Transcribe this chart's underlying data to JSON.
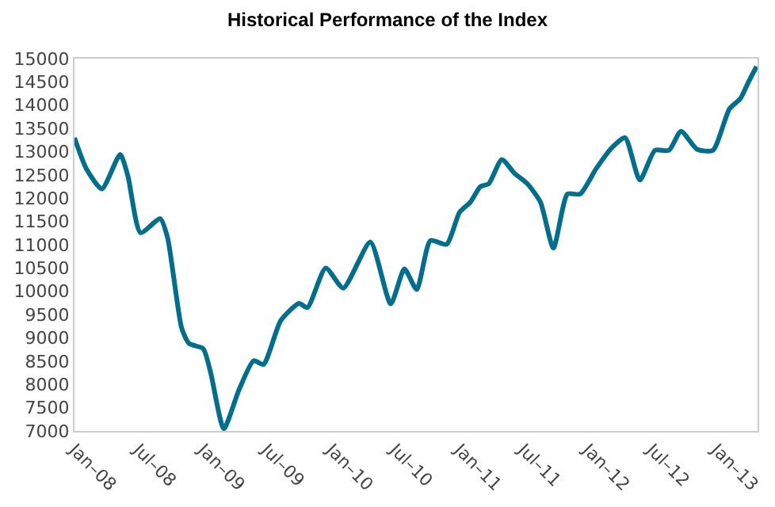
{
  "chart_data": {
    "type": "line",
    "title": "Historical Performance of the Index",
    "x": [
      "2008-01-01",
      "2008-02-04",
      "2008-03-19",
      "2008-05-10",
      "2008-06-01",
      "2008-07-07",
      "2008-09-01",
      "2008-09-22",
      "2008-11-01",
      "2008-11-22",
      "2009-01-01",
      "2009-01-22",
      "2009-03-01",
      "2009-04-13",
      "2009-05-25",
      "2009-06-22",
      "2009-08-10",
      "2009-10-01",
      "2009-10-25",
      "2009-12-16",
      "2010-02-04",
      "2010-04-22",
      "2010-06-19",
      "2010-07-28",
      "2010-09-01",
      "2010-10-10",
      "2010-11-25",
      "2011-01-01",
      "2011-02-01",
      "2011-03-01",
      "2011-03-25",
      "2011-05-01",
      "2011-06-07",
      "2011-07-13",
      "2011-08-19",
      "2011-09-25",
      "2011-11-04",
      "2011-12-10",
      "2012-01-25",
      "2012-03-10",
      "2012-04-16",
      "2012-05-28",
      "2012-07-10",
      "2012-08-19",
      "2012-09-22",
      "2012-11-07",
      "2012-12-22",
      "2013-02-07",
      "2013-03-10",
      "2013-04-01",
      "2013-04-25"
    ],
    "series": [
      {
        "color": "#006f8e",
        "values": [
          13300,
          12630,
          12200,
          12940,
          12480,
          11260,
          11560,
          11150,
          9210,
          8880,
          8770,
          8270,
          7050,
          7880,
          8510,
          8430,
          9370,
          9740,
          9650,
          10500,
          10070,
          11060,
          9730,
          10480,
          10040,
          11090,
          11010,
          11700,
          11920,
          12250,
          12310,
          12830,
          12530,
          12310,
          11920,
          10930,
          12090,
          12090,
          12640,
          13090,
          13300,
          12390,
          13030,
          13030,
          13440,
          13050,
          13030,
          13920,
          14140,
          14480,
          14830
        ]
      }
    ],
    "xlim": [
      "2008-01-01",
      "2013-04-28"
    ],
    "xticks": [
      {
        "value": "2008-01-01",
        "label": "Jan–08"
      },
      {
        "value": "2008-07-01",
        "label": "Jul–08"
      },
      {
        "value": "2009-01-01",
        "label": "Jan–09"
      },
      {
        "value": "2009-07-01",
        "label": "Jul–09"
      },
      {
        "value": "2010-01-01",
        "label": "Jan–10"
      },
      {
        "value": "2010-07-01",
        "label": "Jul–10"
      },
      {
        "value": "2011-01-01",
        "label": "Jan–11"
      },
      {
        "value": "2011-07-01",
        "label": "Jul–11"
      },
      {
        "value": "2012-01-01",
        "label": "Jan–12"
      },
      {
        "value": "2012-07-01",
        "label": "Jul–12"
      },
      {
        "value": "2013-01-01",
        "label": "Jan–13"
      }
    ],
    "ylim": [
      7000,
      15000
    ],
    "yticks": [
      7000,
      7500,
      8000,
      8500,
      9000,
      9500,
      10000,
      10500,
      11000,
      11500,
      12000,
      12500,
      13000,
      13500,
      14000,
      14500,
      15000
    ],
    "grid": false,
    "marker": "none",
    "line_style": "solid"
  }
}
